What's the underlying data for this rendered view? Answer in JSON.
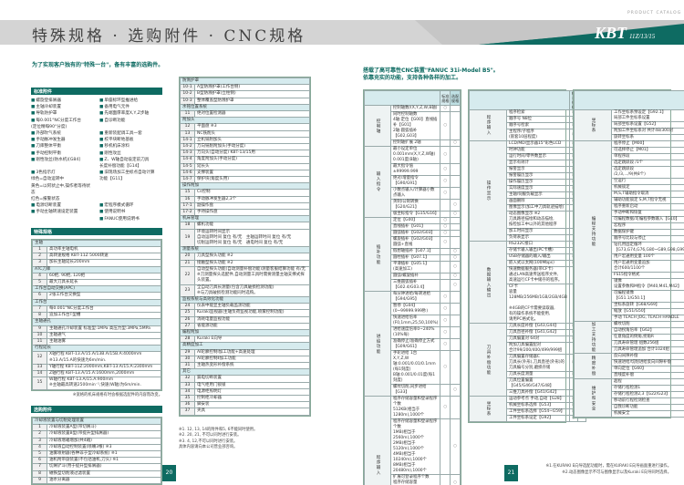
{
  "header": {
    "title": "特殊规格 · 选购附件 · CNC规格",
    "catalog": "PRODUCT CATALOG",
    "brand": "KBT",
    "models": "11Z/13/15"
  },
  "colors": {
    "accent": "#0e6b62",
    "band": "#d4d4d4",
    "row_header": "#d6ebee"
  },
  "left": {
    "lead": "为了实现客户独有的\"特殊一台\"，备有丰富的选购件。",
    "standard": {
      "title": "标准附件",
      "items": [
        "螺旋登排屑器",
        "单座标环型推进给",
        "主轴冷却装置",
        "备用电气元件",
        "导轨防护罩",
        "先端面厚率度X,Y,Z步轴",
        "每0.001°NC分度工作台\n(定位精每90°分度)",
        "自诊断功能",
        "外部吹气系统",
        "重新装配调工具一套",
        "手动脉冲发生器",
        "校平块断地基板",
        "刀库整体平衡",
        "移机机床涂料",
        "手动控制平衡",
        "刚性攻丝",
        "刚性攻丝(防水机)[G84]",
        "Z、W轴自动设定前刀具\n长度补偿功能【G14】",
        "3色指示灯\n绿色=自动运转中\n黄色=以阿状止中,操作者等待状态\n红色=报警状态",
        "旧现场加工坐标点自动计算\n功能【G11】",
        "电源切断装置",
        "宏程序模式循环",
        "手动主轴转速设定装置",
        "使用说明书",
        "",
        "FANUC使用说明书"
      ]
    },
    "special": {
      "title": "特殊规格",
      "groups": [
        {
          "label": "主轴",
          "rows": [
            {
              "no": "1",
              "t": "高功率主轴电机"
            },
            {
              "no": "2",
              "t": "高转速规格 KBT-11Z 5000转速"
            },
            {
              "no": "3",
              "t": "加长主轴延长200mm"
            }
          ]
        },
        {
          "label": "ATC刀库",
          "rows": [
            {
              "no": "4",
              "t": "60把, 90把, 120把"
            },
            {
              "no": "5",
              "t": "最大刀具长延长"
            }
          ]
        },
        {
          "label": "工作台自动交换(APC)",
          "rows": [
            {
              "no": "6",
              "t": "2张工作台交换型"
            }
          ]
        },
        {
          "label": "工作台",
          "rows": [
            {
              "no": "7",
              "t": "每0.001°NC分度工作台"
            },
            {
              "no": "8",
              "t": "追加工作台T型槽"
            }
          ]
        },
        {
          "label": "主轴通孔",
          "rows": [
            {
              "no": "9",
              "t": "主轴通孔冷却装置 标准型:1MPa 高压力型:3MPa,5MPa"
            },
            {
              "no": "10",
              "t": "主轴通气"
            },
            {
              "no": "11",
              "t": "主轴油雾"
            }
          ]
        },
        {
          "label": "行程延长",
          "rows": [
            {
              "no": "12",
              "t": "X轴行程 KBT-13.A/15.A/13B.A/15B.A:4000mm\n※13.A/15.A的快速为6m/min."
            },
            {
              "no": "13",
              "t": "Y轴行程 KBT-11Z:2000mm,KBT-13.A/15.A:2300mm"
            },
            {
              "no": "14",
              "t": "Z轴行程 KBT-13.A/15.A:1600mm,2000mm"
            },
            {
              "no": "15",
              "t": "W轴行程 KBT-13.A/15.A:900mm\n※主轴最高转速2500min⁻¹,快速(W轴)为6m/min."
            }
          ]
        }
      ],
      "note": "※宽格的机床规格有时会根据选配件的内容而改变。"
    },
    "options": {
      "title": "选购附件",
      "groups": [
        {
          "label": "冷却液装置与切削处理装置",
          "rows": [
            {
              "no": "1",
              "t": "冷却液装置A型(带切屑斗)"
            },
            {
              "no": "2",
              "t": "冷却液装置B型(带提升型排屑器)"
            },
            {
              "no": "3",
              "t": "冷却液增箱增加(共4箱)"
            },
            {
              "no": "4",
              "t": "冷却液自动控制装置(喷嘴3根) ※3"
            },
            {
              "no": "5",
              "t": "油雾喷射器(各种非于型冷却系统) ※1"
            },
            {
              "no": "6",
              "t": "油机附带旋装置(不包括油机,刀头) ※1"
            },
            {
              "no": "7",
              "t": "切屑铲斗(用于提升型排屑器)"
            },
            {
              "no": "8",
              "t": "磁铁型切削液过滤装置"
            },
            {
              "no": "9",
              "t": "油水分离器"
            }
          ]
        }
      ]
    },
    "options2": {
      "groups": [
        {
          "label": "防溅护罩",
          "rows": [
            {
              "no": "10-1",
              "t": "A型防溅护罩(工作台侧)"
            },
            {
              "no": "10-2",
              "t": "B型防溅护罩(立柱侧)"
            },
            {
              "no": "10-3",
              "t": "整体覆盖型防溅护罩"
            }
          ]
        },
        {
          "label": "水铭位置系统",
          "rows": [
            {
              "no": "11",
              "t": "绝对位置检测器"
            }
          ]
        },
        {
          "label": "附加头",
          "rows": [
            {
              "no": "12",
              "t": "平面盘 ※3"
            },
            {
              "no": "13",
              "t": "NC铣削头"
            },
            {
              "no": "14-1",
              "t": "立机铣附加头"
            },
            {
              "no": "14-2",
              "t": "万向铣削附加头(手动分度)"
            },
            {
              "no": "14-3",
              "t": "万向头(自动分度) KBT-13/15用"
            },
            {
              "no": "14-4",
              "t": "角度附加头(手动分度)"
            },
            {
              "no": "14-5",
              "t": "延长头"
            },
            {
              "no": "14-6",
              "t": "支撑装置"
            },
            {
              "no": "14-7",
              "t": "保护块(角度头用)"
            }
          ]
        },
        {
          "label": "操作附加",
          "rows": [
            {
              "no": "15",
              "t": "Cs控制"
            },
            {
              "no": "16",
              "t": "手动脉冲发生器2,3个"
            },
            {
              "no": "17-1",
              "t": "副操作盘"
            },
            {
              "no": "17-2",
              "t": "手持操作盘"
            }
          ]
        },
        {
          "label": "机床管理",
          "rows": [
            {
              "no": "18",
              "t": "螺机功能"
            },
            {
              "no": "19",
              "t": "环境运转时间显示\n自动运转时间 复位 有/无　主轴运转时间 复位 有/无\n切削运转时间 复位 有/无　通电时间 复位 有/无"
            }
          ]
        },
        {
          "label": "测量系统",
          "rows": [
            {
              "no": "20",
              "t": "刀具型探头功能 ※2"
            },
            {
              "no": "21",
              "t": "接触型探头功能 ※2"
            },
            {
              "no": "22",
              "t": "自动型探头功能(自动测量补偿功能)测量客服结算功能 有/无\n※刀测量探头选配件,自动测量工具时需要测量主轴支撑式探头装置。"
            },
            {
              "no": "23",
              "t": "全自动刀具长测量(包含刀具破损检测功能)\n※与刀具破损检测功能同时选购。"
            }
          ]
        },
        {
          "label": "监视系统与高效化功能",
          "rows": [
            {
              "no": "24",
              "t": "仪表中能显主轴负载监测功能"
            },
            {
              "no": "25",
              "t": "Kuraki监视器(主轴负荷监视功能,喷雾控制功能)"
            },
            {
              "no": "26",
              "t": "消耗电量监视功能"
            },
            {
              "no": "27",
              "t": "省能源功能"
            }
          ]
        },
        {
          "label": "编程附加",
          "rows": [
            {
              "no": "28",
              "t": "Kuraki E向导"
            }
          ]
        },
        {
          "label": "高精度加工",
          "rows": [
            {
              "no": "29",
              "t": "AI轮廓控制Ⅰ加工功能+高速处理"
            },
            {
              "no": "30",
              "t": "AI轮廓控制Ⅱ加工功能"
            },
            {
              "no": "31",
              "t": "主轴热变形补偿系统"
            }
          ]
        },
        {
          "label": "其它",
          "rows": [
            {
              "no": "32",
              "t": "漏电切断装置"
            },
            {
              "no": "33",
              "t": "电气柜用门锁锁"
            },
            {
              "no": "34",
              "t": "电源柜照明灯"
            },
            {
              "no": "35",
              "t": "控制柜冷却器"
            },
            {
              "no": "36",
              "t": "脚安装"
            },
            {
              "no": "37",
              "t": "夹具"
            }
          ]
        }
      ],
      "notes": "※1. 12, 13, 14的附件和5, 6不能同时使用。\n※2. 20, 21, 不可以同时进行安装。\n※3. 4, 12,不可以同时进行安装。\n具体内容请向本公司营业部咨询。"
    },
    "page_no": "20"
  },
  "right": {
    "lead": "搭载了高可靠性CNC装置\"FANUC 31i-Model B5\"。\n依靠充实的功能，支持各种各样的加工。",
    "col_std": "标准\n规格",
    "col_opt": "选配\n规格",
    "mark": "○",
    "tables": [
      [
        {
          "label": "控制轴",
          "rows": [
            [
              "控制轴数/(X,Y,Z,W,B轴)",
              "s"
            ],
            [
              "同时控制轴数\n4轴:定位【G00】直线插补【G01】\n2轴:圆弧插补【G02,G03】",
              "s"
            ],
            [
              "控制轴扩展 2轴",
              "o"
            ]
          ]
        },
        {
          "label": "输入指令",
          "rows": [
            [
              "最小设定单位 0.001mm(X,Y,Z,W轴)\n0.001度(B轴)",
              "s"
            ],
            [
              "最大指令值 ±99999.999",
              "s"
            ],
            [
              "绝对/增量指令【G90/G91】",
              "s"
            ],
            [
              "小数点输入/计算器小数点输入",
              "s"
            ],
            [
              "英制/公制转换【G20/G21】",
              "o"
            ],
            [
              "极坐标指令【G15/G16】",
              "o"
            ]
          ]
        },
        {
          "label": "插补功能",
          "rows": [
            [
              "定位【G00】",
              "s"
            ],
            [
              "直线插补【G01】",
              "s"
            ],
            [
              "圆弧插补【G02/G03】",
              "s"
            ],
            [
              "螺旋插补【G02/G03】圆弧+直线",
              "s"
            ],
            [
              "假想轴插补【G07.1】",
              "o"
            ],
            [
              "圆柱插补【G07.1】",
              "o"
            ],
            [
              "平滑插补【G05.1】\n(高速加工)",
              "o"
            ],
            [
              "圆弧/螺旋插补",
              "o"
            ],
            [
              "三维圆弧插补【G02.4/G03.4】",
              "o"
            ]
          ]
        },
        {
          "label": "进给功能",
          "rows": [
            [
              "每分钟进给/每转进给【G94/G95】",
              "s"
            ],
            [
              "暂停【G04】(0~99999.999秒)",
              "s"
            ],
            [
              "快速进给倍率(F0,1mm,25,50,100%)",
              "s"
            ],
            [
              "进给速度倍率0~240%(10%每)",
              "s"
            ],
            [
              "准确停止/准确停止方式\n【G09/G61】",
              "s"
            ],
            [
              "手轮进给 1台\nX,Y,Z,W轴:0.001/0.01/0.1mm\n(每1刻度)\nB轴:0.001/0.01度(每1刻度)",
              "s"
            ],
            [
              "螺纹切削,同步进给【G33】",
              "o"
            ]
          ]
        },
        {
          "label": "程序输入",
          "rows": [
            [
              "程序存储容量和登录程序个数\n512KB(相当于1280m),1000个",
              "s"
            ],
            [
              "程序存储容量和登录程序个数\n1MB(相当于2560m),1000个\n2MB(相当于5120m),1000个\n4MB(相当于10240m),1000个\n8MB(相当于20480m),1000个",
              "o"
            ],
            [
              "扩展可登录程序个数\n程序存储容量\n1MB以上:4000个",
              "o"
            ],
            [
              "程序编辑:作成,删除,编辑,检索等",
              "s"
            ],
            [
              "扩展程序编辑:复制,移动,替换",
              "s"
            ],
            [
              "背景编辑 ※1",
              "s"
            ],
            [
              "程序文件名 32个字符",
              "s"
            ],
            [
              "程序号　O4位",
              "s"
            ]
          ]
        }
      ],
      [
        {
          "label": "程序输入",
          "rows": [
            [
              "程序检索",
              "s"
            ],
            [
              "顺序号 N8位",
              "s"
            ],
            [
              "顺序号检索",
              "s"
            ],
            [
              "主程序/子程序\n(嵌套10层程度)",
              "s"
            ]
          ]
        },
        {
          "label": "操作显示",
          "rows": [
            [
              "LCD/MDI显示器15\"彩色LCD",
              "s"
            ],
            [
              "时钟功能",
              "s"
            ],
            [
              "运行时间/零件数显示",
              "s"
            ],
            [
              "显示有效计",
              "s"
            ],
            [
              "报警显示",
              "s"
            ],
            [
              "报警履历显示",
              "s"
            ],
            [
              "操作履历显示",
              "s"
            ],
            [
              "实际速度显示",
              "s"
            ],
            [
              "主轴/伺服负载显示",
              "s"
            ],
            [
              "画面删除",
              "s"
            ],
            [
              "图像显示(加工中刀具轨迹描绘)",
              "o"
            ],
            [
              "动态图像显示 ※2\n刀具路径描绘和动态描绘,\n按检加工中以外的其他程序",
              "o"
            ],
            [
              "加工时间显示",
              "o"
            ],
            [
              "负荷表显示",
              "o"
            ]
          ]
        },
        {
          "label": "数据输入输出",
          "rows": [
            [
              "RS232C接口",
              "s"
            ],
            [
              "存储卡输入输出(PC卡槽)",
              "s"
            ],
            [
              "USB存储器的输入/输出",
              "s"
            ],
            [
              "嵌入式以太网(100Mbps)",
              "s"
            ],
            [
              "快速数据服务器(带CF卡)\n通过LAN高速传送程序文件,\n高速运行CF卡中储存的程序。",
              "o"
            ],
            [
              "CF卡\n容量128MB/256MB/1GB/2GB/4GB\n\n※4GB的CF卡需要读取器,\n有的操作系统不能使用,\n请用PC格式化。",
              "o"
            ]
          ]
        },
        {
          "label": "刀具补偿功能",
          "rows": [
            [
              "刀具长度补偿【G43,G44】",
              "s"
            ],
            [
              "刀具直径补偿【G41,G42】",
              "s"
            ],
            [
              "刀具偏置对 64对",
              "s"
            ],
            [
              "附加刀具偏置配对\n合计99/200/400/499/999组",
              "o"
            ],
            [
              "刀具偏置存储器C\n刀具长(外形),刀具直径(外形)的\n刀具编号分别,磨损存储",
              "s"
            ],
            [
              "刀具长度测量",
              "s"
            ],
            [
              "刀具位置偏置【G45/G46/G47/G48】",
              "o"
            ],
            [
              "三维刀具补偿【G41/G42】",
              "o"
            ]
          ]
        },
        {
          "label": "坐标系",
          "rows": [
            [
              "运动参考点 手动,自动【G28】",
              "s"
            ],
            [
              "机械坐标系选择【G53】",
              "s"
            ],
            [
              "工件坐标系选择【G54~G59】",
              "s"
            ],
            [
              "工件坐标系设定【G92】",
              "s"
            ]
          ]
        }
      ],
      [
        {
          "label": "坐标系",
          "rows": [
            [
              "工作坐标系预设定【G92.1】\n局部工件坐标系设置",
              "s"
            ],
            [
              "局部坐标系设置【G52】",
              "s"
            ],
            [
              "附加工件坐标系对 共计48/300对",
              "o"
            ],
            [
              "旋转坐标系",
              "o"
            ]
          ]
        },
        {
          "label": "编程支持功能",
          "rows": [
            [
              "程序停止【M00】",
              "s"
            ],
            [
              "可选择停止【M01】",
              "s"
            ],
            [
              "单程序段",
              "s"
            ],
            [
              "选定跳跃段 /1个",
              "s"
            ],
            [
              "选定跳跃段\n/2,/3,.../9(共8个)",
              "o"
            ],
            [
              "空运行",
              "s"
            ],
            [
              "机械锁定",
              "s"
            ],
            [
              "M,S,T辅助指令取消",
              "s"
            ],
            [
              "辅助功能锁定 S,M,T指令无视",
              "s"
            ],
            [
              "程序重新启动",
              "s"
            ],
            [
              "手动中断和恢复",
              "s"
            ],
            [
              "可编程数据/可编程参数输入【G10】",
              "s"
            ],
            [
              "宏程序",
              "s"
            ],
            [
              "数据保护键",
              "o"
            ],
            [
              "顺序号比较与停止",
              "o"
            ],
            [
              "钻孔用固定循环\n【G73,G74,G76,G80~G89,G98,G99】",
              "s"
            ],
            [
              "用户宏通用变量 100个",
              "s"
            ],
            [
              "用户宏通用变量追加\n合计600/1100个",
              "o"
            ],
            [
              "FS15指令格式",
              "o"
            ],
            [
              "镜像\n设置参数和M指令【M40,M41,M42】",
              "s"
            ],
            [
              "可编程镜像\n【G51.1/G50.1】",
              "o"
            ],
            [
              "坐标系旋转【G68/G69】",
              "s"
            ],
            [
              "缩放【G51/G50】",
              "o"
            ],
            [
              "手动 TEACH JOG, TEACH HANDLE",
              "o"
            ]
          ]
        },
        {
          "label": "加工支持功能",
          "rows": [
            [
              "螺纹切削",
              "s"
            ],
            [
              "自动拐角倍率【G62】",
              "s"
            ],
            [
              "任意角度的倒角,拐角R",
              "s"
            ],
            [
              "刀具寿命管理 组数256组",
              "o"
            ],
            [
              "刀具寿命管理追加 合计1024组",
              "o"
            ]
          ]
        },
        {
          "label": "精度补偿",
          "rows": [
            [
              "反向间隙补偿",
              "s"
            ],
            [
              "快速进给/切削进给反向间隙补偿",
              "s"
            ],
            [
              "单向定位【G60】",
              "s"
            ],
            [
              "直线度补偿",
              "o"
            ]
          ]
        },
        {
          "label": "维护和安全",
          "rows": [
            [
              "超程",
              "s"
            ],
            [
              "存储行程检测1",
              "s"
            ],
            [
              "存储行程检测2,3【G22/G23】",
              "o"
            ],
            [
              "移动前行程检测检查",
              "o"
            ],
            [
              "自我诊断功能",
              "s"
            ],
            [
              "机械安全",
              "s"
            ]
          ]
        }
      ]
    ],
    "notes": "※1.在KURAKI E向导选配功能时，需在KURAKI E向导画面重进行操作。\n※2.动态图像显示不可与图像显示以及Kuraki E向导同时选择。",
    "page_no": "21"
  }
}
